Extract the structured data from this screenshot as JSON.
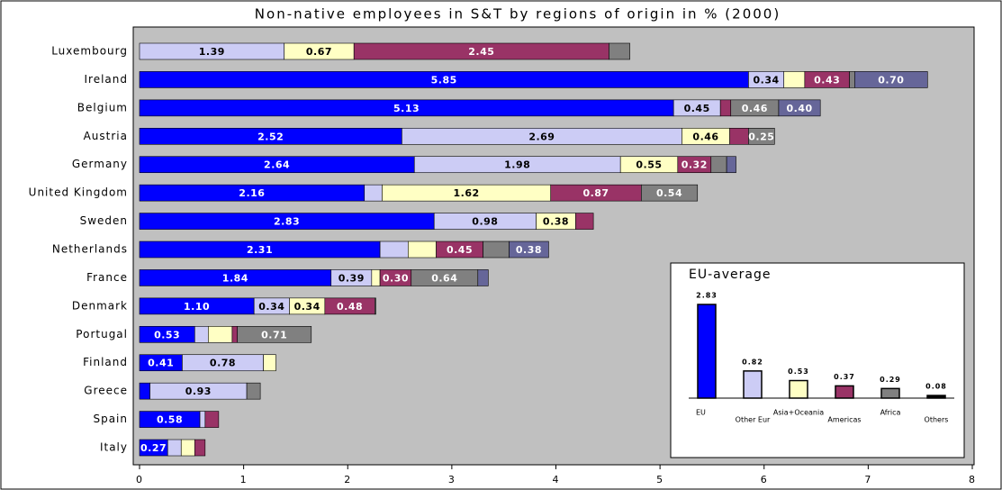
{
  "chart_data": [
    {
      "type": "hbar-stacked",
      "title": "Non-native employees in S&T by regions of origin in % (2000)",
      "categories": [
        "Luxembourg",
        "Ireland",
        "Belgium",
        "Austria",
        "Germany",
        "United Kingdom",
        "Sweden",
        "Netherlands",
        "France",
        "Denmark",
        "Portugal",
        "Finland",
        "Greece",
        "Spain",
        "Italy"
      ],
      "series": [
        {
          "color": "#0000ff",
          "values": [
            0,
            5.85,
            5.13,
            2.52,
            2.64,
            2.16,
            2.83,
            2.31,
            1.84,
            1.1,
            0.53,
            0.41,
            0.1,
            0.58,
            0.27
          ],
          "value_labels": [
            null,
            "5.85",
            "5.13",
            "2.52",
            "2.64",
            "2.16",
            "2.83",
            "2.31",
            "1.84",
            "1.10",
            "0.53",
            "0.41",
            null,
            "0.58",
            "0.27"
          ]
        },
        {
          "color": "#ccccf5",
          "values": [
            1.39,
            0.34,
            0.45,
            2.69,
            1.98,
            0.17,
            0.98,
            0.27,
            0.39,
            0.34,
            0.13,
            0.78,
            0.93,
            0.05,
            0.13
          ],
          "value_labels": [
            "1.39",
            "0.34",
            "0.45",
            "2.69",
            "1.98",
            null,
            "0.98",
            null,
            "0.39",
            "0.34",
            null,
            "0.78",
            "0.93",
            null,
            null
          ]
        },
        {
          "color": "#ffffc4",
          "values": [
            0.67,
            0.2,
            0,
            0.46,
            0.55,
            1.62,
            0.38,
            0.27,
            0.08,
            0.34,
            0.23,
            0.12,
            0,
            0,
            0.13
          ],
          "value_labels": [
            "0.67",
            null,
            null,
            "0.46",
            "0.55",
            "1.62",
            "0.38",
            null,
            null,
            "0.34",
            null,
            null,
            null,
            null,
            null
          ]
        },
        {
          "color": "#993366",
          "values": [
            2.45,
            0.43,
            0.1,
            0.18,
            0.32,
            0.87,
            0.17,
            0.45,
            0.3,
            0.48,
            0.05,
            0,
            0,
            0.13,
            0.1
          ],
          "value_labels": [
            "2.45",
            "0.43",
            null,
            null,
            "0.32",
            "0.87",
            null,
            "0.45",
            "0.30",
            "0.48",
            null,
            null,
            null,
            null,
            null
          ]
        },
        {
          "color": "#808080",
          "values": [
            0.2,
            0.05,
            0.46,
            0.25,
            0.15,
            0.54,
            0,
            0.25,
            0.64,
            0.01,
            0.71,
            0,
            0.13,
            0,
            0
          ],
          "value_labels": [
            null,
            null,
            "0.46",
            "0.25",
            null,
            "0.54",
            null,
            null,
            "0.64",
            null,
            "0.71",
            null,
            null,
            null,
            null
          ]
        },
        {
          "color": "#666699",
          "values": [
            0,
            0.7,
            0.4,
            0,
            0.09,
            0,
            0,
            0.38,
            0.1,
            0,
            0,
            0,
            0,
            0,
            0
          ],
          "value_labels": [
            null,
            "0.70",
            "0.40",
            null,
            null,
            null,
            null,
            "0.38",
            null,
            null,
            null,
            null,
            null,
            null,
            null
          ]
        }
      ],
      "xlim": [
        0,
        8
      ],
      "xticks": [
        0,
        1,
        2,
        3,
        4,
        5,
        6,
        7,
        8
      ]
    },
    {
      "type": "bar",
      "title": "EU-average",
      "categories": [
        "EU",
        "Other Eur",
        "Asia+Oceania",
        "Americas",
        "Africa",
        "Others"
      ],
      "values": [
        2.83,
        0.82,
        0.53,
        0.37,
        0.29,
        0.08
      ],
      "colors": [
        "#0000ff",
        "#ccccf5",
        "#ffffc4",
        "#993366",
        "#808080",
        "#000000"
      ]
    }
  ]
}
